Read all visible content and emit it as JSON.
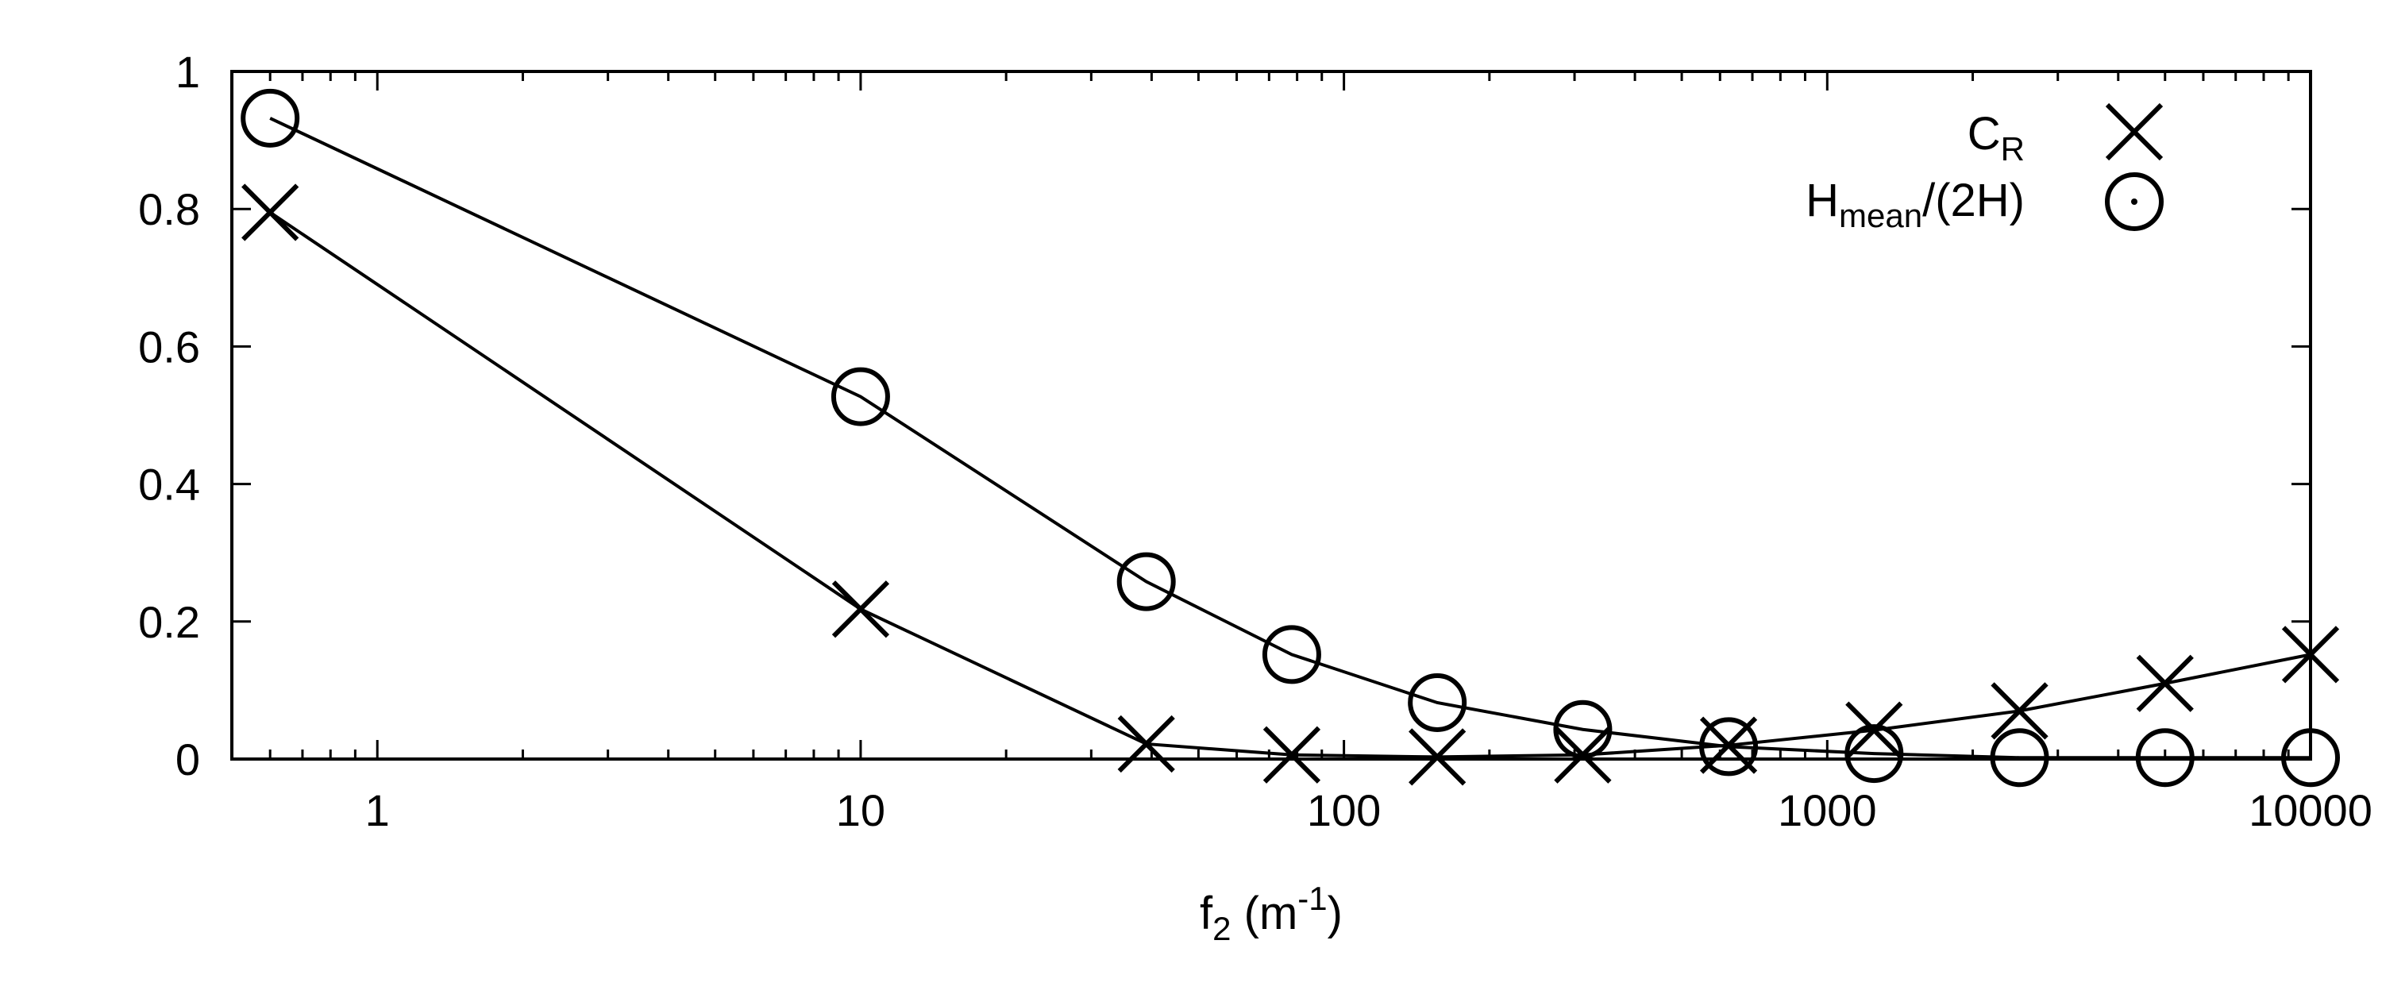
{
  "chart_data": {
    "type": "line",
    "x_scale": "log",
    "xlim": [
      0.5,
      10000
    ],
    "ylim": [
      0,
      1
    ],
    "grid": false,
    "legend_position": "top-right",
    "xlabel": {
      "main": "f",
      "sub": "2",
      "mid": " (m",
      "sup": "-1",
      "end": ")"
    },
    "ylabel": "",
    "x_ticks": [
      {
        "value": 1,
        "label": "1"
      },
      {
        "value": 10,
        "label": "10"
      },
      {
        "value": 100,
        "label": "100"
      },
      {
        "value": 1000,
        "label": "1000"
      },
      {
        "value": 10000,
        "label": "10000"
      }
    ],
    "y_ticks": [
      {
        "value": 0,
        "label": "0"
      },
      {
        "value": 0.2,
        "label": "0.2"
      },
      {
        "value": 0.4,
        "label": "0.4"
      },
      {
        "value": 0.6,
        "label": "0.6"
      },
      {
        "value": 0.8,
        "label": "0.8"
      },
      {
        "value": 1,
        "label": "1"
      }
    ],
    "series": [
      {
        "name": "C_R",
        "label": {
          "main": "C",
          "sub": "R",
          "end": ""
        },
        "marker": "cross",
        "color": "#000000",
        "x": [
          0.6,
          10,
          39,
          78,
          156,
          312,
          625,
          1250,
          2500,
          5000,
          10000
        ],
        "y": [
          0.795,
          0.218,
          0.022,
          0.006,
          0.003,
          0.006,
          0.02,
          0.042,
          0.07,
          0.11,
          0.152
        ]
      },
      {
        "name": "H_mean/(2H)",
        "label": {
          "main": "H",
          "sub": "mean",
          "end": "/(2H)"
        },
        "marker": "circle",
        "color": "#000000",
        "x": [
          0.6,
          10,
          39,
          78,
          156,
          312,
          625,
          1250,
          2500,
          5000,
          10000
        ],
        "y": [
          0.932,
          0.527,
          0.258,
          0.152,
          0.082,
          0.043,
          0.018,
          0.008,
          0.002,
          0.002,
          0.002
        ]
      }
    ]
  }
}
